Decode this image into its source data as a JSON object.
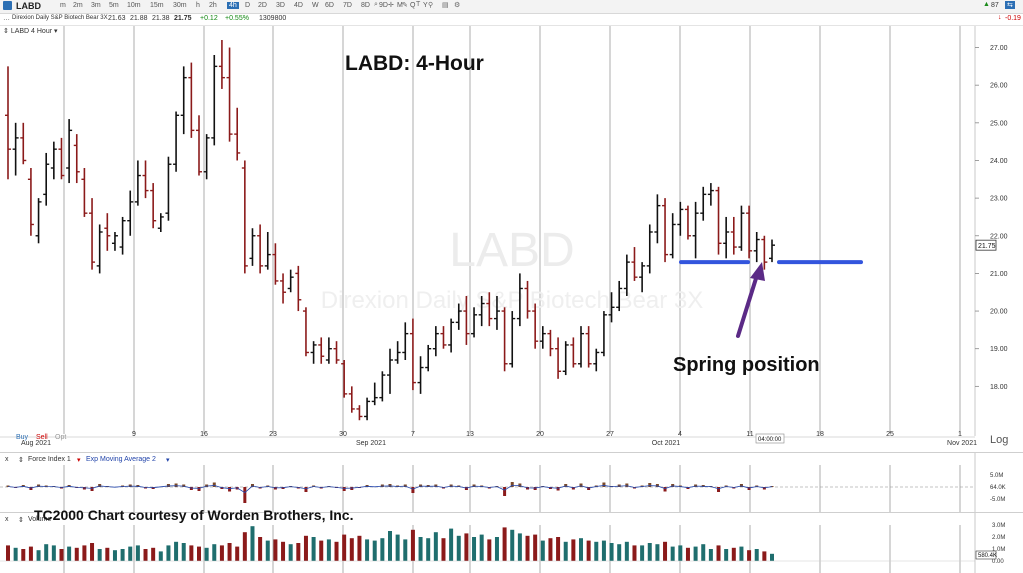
{
  "toolbar": {
    "symbol": "LABD",
    "timeframes": [
      "m",
      "2m",
      "3m",
      "5m",
      "10m",
      "15m",
      "30m",
      "h",
      "2h",
      "4h",
      "D",
      "2D",
      "3D",
      "4D",
      "W",
      "6D",
      "7D",
      "8D",
      "9D",
      "M",
      "Q",
      "Y"
    ],
    "active_timeframe": "4h",
    "right_readout": "87"
  },
  "quote": {
    "name": "Direxion Daily S&P Biotech Bear 3X",
    "open": "21.63",
    "high": "21.88",
    "low": "21.38",
    "close": "21.75",
    "change": "+0.12",
    "change_pct": "+0.55%",
    "volume": "1309800",
    "right_change": "-0.19"
  },
  "price_pane": {
    "label": "LABD 4 Hour",
    "watermark_symbol": "LABD",
    "watermark_name": "Direxion Daily S&P Biotech Bear 3X",
    "annotation_title": "LABD:  4-Hour",
    "annotation_spring": "Spring position",
    "price_tag": "21.75",
    "time_tag": "04:00:00",
    "buy_label": "Buy",
    "sell_label": "Sell",
    "opt_label": "Opt",
    "log_label": "Log",
    "y_ticks": [
      "27.00",
      "26.00",
      "25.00",
      "24.00",
      "23.00",
      "22.00",
      "21.00",
      "20.00",
      "19.00",
      "18.00"
    ],
    "x_ticks": [
      "Aug 2021",
      "9",
      "16",
      "23",
      "30",
      "Sep 2021",
      "7",
      "13",
      "20",
      "27",
      "Oct 2021",
      "4",
      "11",
      "18",
      "25",
      "1",
      "Nov 2021"
    ],
    "colors": {
      "up": "#111111",
      "down": "#8b1a1a",
      "line": "#3355dd",
      "arrow": "#5b2a86",
      "grid": "#9a9a9a"
    }
  },
  "force_pane": {
    "close_label": "x",
    "indicator": "Force Index 1",
    "overlay": "Exp Moving Average 2",
    "y_ticks": [
      "5.0M",
      "64.0K",
      "-5.0M"
    ]
  },
  "volume_pane": {
    "close_label": "x",
    "indicator": "Volume",
    "credit": "TC2000 Chart courtesy of Worden Brothers, Inc.",
    "y_ticks": [
      "3.0M",
      "2.0M",
      "1.0M",
      "0.00"
    ],
    "last_tag": "580.4K"
  },
  "chart_data": {
    "type": "ohlc",
    "title": "LABD:  4-Hour",
    "ylim": [
      17.0,
      27.2
    ],
    "bars": [
      [
        25.2,
        26.5,
        23.5,
        24.3
      ],
      [
        24.3,
        25.0,
        23.6,
        24.6
      ],
      [
        24.6,
        25.0,
        23.9,
        24.0
      ],
      [
        23.5,
        23.8,
        22.0,
        22.3
      ],
      [
        22.0,
        23.0,
        21.8,
        22.9
      ],
      [
        23.1,
        24.2,
        22.8,
        23.9
      ],
      [
        23.8,
        24.5,
        23.5,
        24.3
      ],
      [
        24.3,
        24.6,
        23.5,
        23.6
      ],
      [
        23.8,
        25.1,
        23.4,
        24.8
      ],
      [
        24.4,
        24.7,
        23.4,
        23.7
      ],
      [
        23.5,
        23.8,
        22.5,
        22.6
      ],
      [
        22.6,
        23.0,
        21.1,
        21.3
      ],
      [
        21.2,
        22.3,
        21.0,
        22.1
      ],
      [
        22.2,
        22.6,
        21.6,
        22.0
      ],
      [
        21.8,
        22.1,
        21.6,
        22.0
      ],
      [
        21.7,
        22.5,
        21.5,
        22.4
      ],
      [
        22.4,
        23.2,
        22.0,
        22.9
      ],
      [
        22.9,
        24.0,
        22.8,
        23.6
      ],
      [
        23.6,
        24.0,
        23.0,
        23.2
      ],
      [
        23.2,
        23.4,
        22.2,
        22.4
      ],
      [
        22.2,
        22.6,
        22.1,
        22.5
      ],
      [
        22.6,
        24.1,
        22.4,
        23.9
      ],
      [
        23.9,
        25.3,
        23.7,
        25.2
      ],
      [
        25.2,
        26.5,
        24.7,
        26.2
      ],
      [
        26.2,
        26.6,
        24.6,
        24.8
      ],
      [
        24.8,
        25.2,
        23.6,
        23.7
      ],
      [
        23.7,
        24.7,
        23.5,
        24.6
      ],
      [
        24.6,
        26.8,
        24.4,
        26.5
      ],
      [
        26.5,
        27.2,
        25.9,
        26.2
      ],
      [
        26.2,
        27.0,
        24.5,
        24.7
      ],
      [
        24.7,
        25.4,
        24.0,
        24.2
      ],
      [
        23.8,
        24.0,
        21.0,
        21.2
      ],
      [
        21.4,
        22.2,
        21.2,
        22.0
      ],
      [
        22.0,
        22.3,
        21.0,
        21.2
      ],
      [
        21.2,
        22.1,
        21.1,
        21.5
      ],
      [
        21.5,
        21.8,
        20.7,
        20.8
      ],
      [
        20.8,
        21.0,
        20.2,
        20.5
      ],
      [
        20.6,
        21.1,
        20.5,
        20.9
      ],
      [
        21.0,
        21.2,
        20.0,
        20.3
      ],
      [
        20.0,
        20.1,
        18.8,
        18.9
      ],
      [
        18.9,
        19.2,
        18.6,
        19.1
      ],
      [
        19.1,
        19.3,
        18.6,
        18.8
      ],
      [
        18.7,
        19.3,
        18.6,
        19.0
      ],
      [
        19.0,
        19.2,
        18.6,
        18.7
      ],
      [
        18.6,
        18.7,
        17.7,
        17.8
      ],
      [
        17.8,
        18.0,
        17.3,
        17.4
      ],
      [
        17.4,
        17.5,
        17.1,
        17.2
      ],
      [
        17.2,
        17.7,
        17.1,
        17.6
      ],
      [
        17.6,
        18.1,
        17.5,
        17.7
      ],
      [
        17.7,
        18.4,
        17.6,
        18.3
      ],
      [
        18.3,
        19.0,
        17.8,
        18.7
      ],
      [
        18.7,
        19.2,
        18.6,
        18.9
      ],
      [
        18.9,
        19.7,
        18.7,
        19.4
      ],
      [
        19.4,
        19.8,
        17.9,
        18.1
      ],
      [
        18.1,
        18.8,
        17.8,
        18.5
      ],
      [
        18.5,
        19.1,
        18.4,
        19.0
      ],
      [
        19.0,
        19.6,
        18.8,
        19.4
      ],
      [
        19.4,
        19.6,
        19.0,
        19.1
      ],
      [
        19.1,
        19.8,
        18.9,
        19.7
      ],
      [
        19.7,
        20.2,
        19.5,
        20.0
      ],
      [
        20.0,
        20.4,
        19.1,
        19.4
      ],
      [
        19.4,
        20.1,
        19.3,
        19.9
      ],
      [
        19.9,
        20.4,
        19.6,
        20.2
      ],
      [
        20.2,
        20.5,
        19.6,
        19.8
      ],
      [
        19.8,
        20.4,
        19.5,
        20.0
      ],
      [
        20.0,
        20.1,
        18.4,
        18.6
      ],
      [
        18.6,
        20.0,
        18.5,
        19.8
      ],
      [
        19.8,
        21.0,
        19.6,
        20.6
      ],
      [
        20.6,
        20.8,
        19.8,
        20.0
      ],
      [
        20.0,
        20.2,
        19.0,
        19.2
      ],
      [
        19.2,
        19.6,
        19.0,
        19.4
      ],
      [
        19.4,
        19.5,
        18.8,
        19.0
      ],
      [
        19.0,
        19.3,
        18.2,
        18.4
      ],
      [
        18.4,
        19.2,
        18.3,
        19.1
      ],
      [
        19.1,
        19.3,
        18.5,
        18.6
      ],
      [
        18.6,
        19.6,
        18.5,
        19.4
      ],
      [
        19.4,
        19.6,
        18.5,
        18.6
      ],
      [
        18.6,
        19.0,
        18.4,
        18.9
      ],
      [
        18.9,
        20.0,
        18.8,
        19.9
      ],
      [
        19.9,
        20.5,
        19.7,
        20.1
      ],
      [
        20.1,
        20.8,
        20.0,
        20.6
      ],
      [
        20.6,
        21.5,
        20.4,
        21.3
      ],
      [
        21.3,
        21.7,
        20.8,
        20.9
      ],
      [
        20.9,
        21.3,
        20.5,
        21.2
      ],
      [
        21.2,
        22.3,
        21.0,
        22.1
      ],
      [
        22.1,
        23.1,
        21.8,
        22.8
      ],
      [
        22.8,
        23.0,
        21.3,
        21.5
      ],
      [
        21.5,
        22.6,
        21.4,
        22.3
      ],
      [
        22.3,
        22.9,
        22.0,
        22.7
      ],
      [
        22.7,
        22.8,
        21.9,
        22.0
      ],
      [
        22.0,
        22.9,
        21.4,
        22.6
      ],
      [
        22.6,
        23.3,
        22.4,
        23.1
      ],
      [
        23.1,
        23.4,
        22.8,
        23.2
      ],
      [
        23.2,
        23.3,
        21.5,
        21.8
      ],
      [
        21.8,
        22.5,
        21.4,
        22.1
      ],
      [
        22.1,
        22.5,
        21.5,
        21.7
      ],
      [
        21.7,
        22.8,
        21.6,
        22.6
      ],
      [
        22.6,
        22.8,
        21.4,
        21.6
      ],
      [
        21.6,
        22.1,
        21.3,
        21.9
      ],
      [
        21.9,
        22.0,
        21.1,
        21.3
      ],
      [
        21.4,
        21.9,
        21.3,
        21.75
      ]
    ],
    "support_lines": [
      21.3,
      21.3
    ],
    "force_index": [
      0.3,
      -0.2,
      0.4,
      -0.6,
      0.5,
      0.3,
      0.2,
      -0.3,
      0.4,
      -0.2,
      -0.5,
      -0.8,
      0.6,
      0.2,
      -0.1,
      0.3,
      0.5,
      0.4,
      -0.3,
      -0.4,
      0.1,
      0.6,
      0.7,
      0.5,
      -0.6,
      -0.8,
      0.5,
      0.9,
      -0.4,
      -0.9,
      -0.5,
      -3.2,
      0.6,
      -0.3,
      0.3,
      -0.5,
      -0.4,
      0.2,
      -0.3,
      -1.0,
      0.3,
      -0.3,
      0.2,
      -0.2,
      -0.8,
      -0.6,
      -0.2,
      0.4,
      0.1,
      0.5,
      0.6,
      0.3,
      0.5,
      -1.2,
      0.5,
      0.4,
      0.5,
      -0.3,
      0.5,
      0.3,
      -0.6,
      0.5,
      0.3,
      -0.3,
      0.2,
      -1.8,
      1.0,
      0.7,
      -0.5,
      -0.6,
      0.2,
      -0.4,
      -0.7,
      0.6,
      -0.5,
      0.7,
      -0.6,
      0.3,
      0.9,
      0.2,
      0.5,
      0.7,
      -0.3,
      0.3,
      0.8,
      0.6,
      -0.9,
      0.6,
      0.3,
      -0.4,
      0.5,
      0.4,
      0.2,
      -1.0,
      0.3,
      -0.3,
      0.6,
      -0.6,
      0.3,
      -0.5,
      0.2
    ],
    "volume": [
      1.3,
      1.1,
      1.0,
      1.2,
      0.9,
      1.4,
      1.3,
      1.0,
      1.2,
      1.1,
      1.3,
      1.5,
      1.0,
      1.1,
      0.9,
      1.0,
      1.2,
      1.3,
      1.0,
      1.1,
      0.8,
      1.3,
      1.6,
      1.5,
      1.3,
      1.2,
      1.1,
      1.4,
      1.3,
      1.5,
      1.2,
      2.4,
      2.9,
      2.0,
      1.7,
      1.8,
      1.6,
      1.4,
      1.5,
      2.1,
      2.0,
      1.7,
      1.8,
      1.6,
      2.2,
      1.9,
      2.1,
      1.8,
      1.7,
      1.9,
      2.5,
      2.2,
      1.8,
      2.6,
      2.0,
      1.9,
      2.4,
      1.9,
      2.7,
      2.1,
      2.3,
      2.0,
      2.2,
      1.8,
      2.0,
      2.8,
      2.6,
      2.3,
      2.1,
      2.2,
      1.7,
      1.9,
      2.0,
      1.6,
      1.8,
      1.9,
      1.7,
      1.6,
      1.7,
      1.5,
      1.4,
      1.6,
      1.3,
      1.3,
      1.5,
      1.4,
      1.6,
      1.2,
      1.3,
      1.1,
      1.2,
      1.4,
      1.0,
      1.3,
      1.0,
      1.1,
      1.2,
      0.9,
      1.0,
      0.8,
      0.6
    ]
  }
}
